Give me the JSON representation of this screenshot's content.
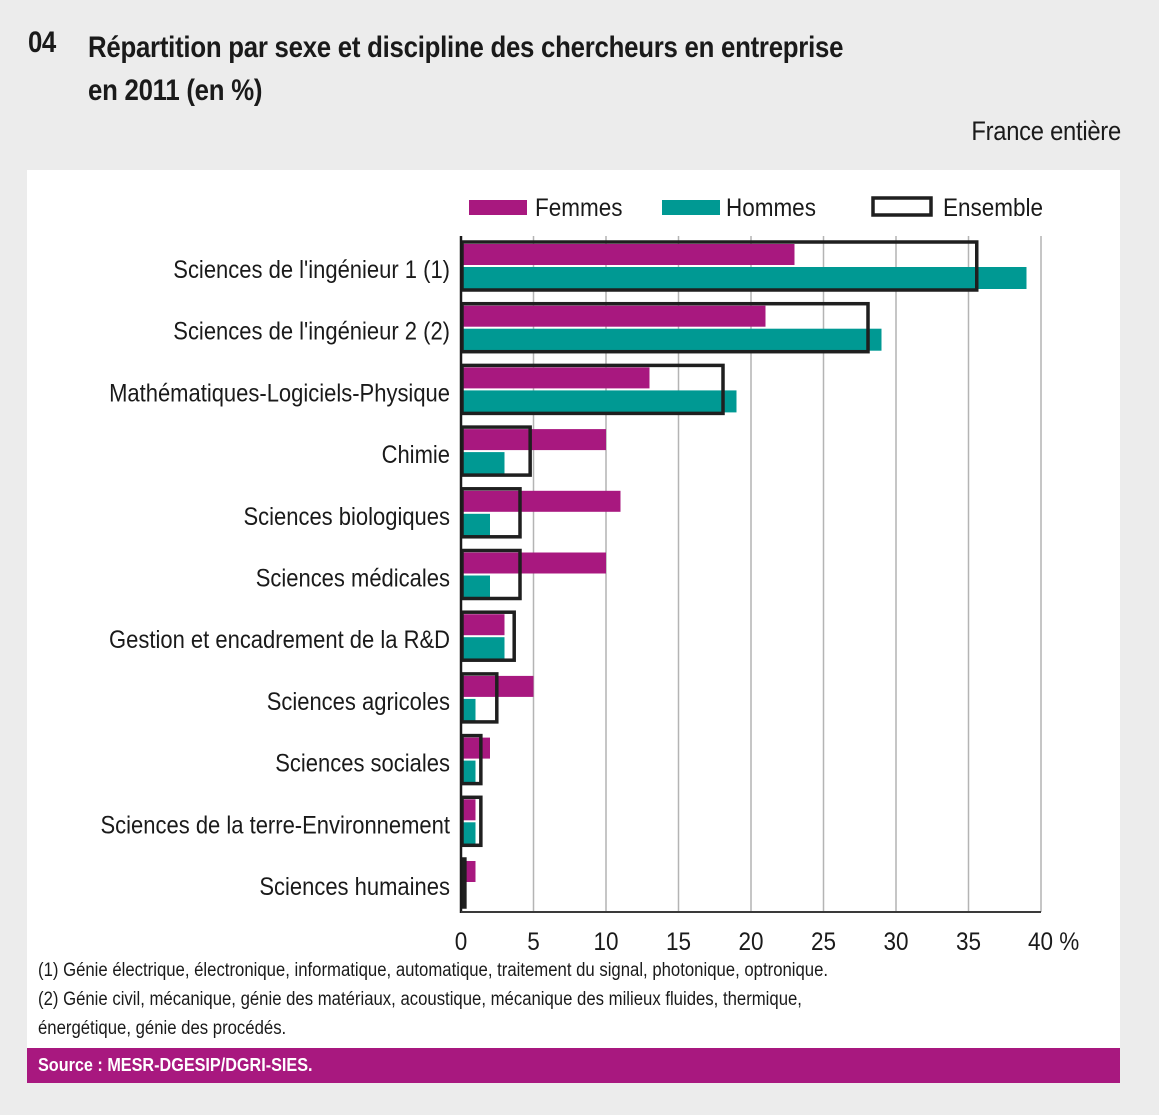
{
  "header": {
    "number": "04",
    "title_line1": "Répartition par sexe et discipline des chercheurs en entreprise",
    "title_line2": "en 2011 (en %)",
    "scope": "France entière"
  },
  "colors": {
    "femmes": "#a8187f",
    "hommes": "#009993",
    "ensemble_outline": "#1f1f1f",
    "background": "#ececec",
    "panel": "#ffffff",
    "gridline": "#b4b4b4",
    "source_band": "#a8187f"
  },
  "chart_data": {
    "type": "bar",
    "orientation": "horizontal",
    "title": "Répartition par sexe et discipline des chercheurs en entreprise en 2011 (en %)",
    "xlabel": "%",
    "ylabel": "",
    "xlim": [
      0,
      40
    ],
    "x_ticks": [
      0,
      5,
      10,
      15,
      20,
      25,
      30,
      35,
      40
    ],
    "x_tick_labels": [
      "0",
      "5",
      "10",
      "15",
      "20",
      "25",
      "30",
      "35",
      "40 %"
    ],
    "grid": "vertical",
    "legend_position": "top",
    "categories": [
      "Sciences de l'ingénieur 1 (1)",
      "Sciences de l'ingénieur 2 (2)",
      "Mathématiques-Logiciels-Physique",
      "Chimie",
      "Sciences biologiques",
      "Sciences médicales",
      "Gestion et encadrement de la R&D",
      "Sciences agricoles",
      "Sciences sociales",
      "Sciences de la terre-Environnement",
      "Sciences humaines"
    ],
    "series": [
      {
        "name": "Femmes",
        "style": "filled",
        "values": [
          23,
          21,
          13,
          10,
          11,
          10,
          3,
          5,
          2,
          1,
          1
        ]
      },
      {
        "name": "Hommes",
        "style": "filled",
        "values": [
          39,
          29,
          19,
          3,
          2,
          2,
          3,
          1,
          1,
          1,
          0
        ]
      },
      {
        "name": "Ensemble",
        "style": "outline",
        "values": [
          35.5,
          28,
          18,
          4.7,
          4,
          4,
          3.6,
          2.4,
          1.3,
          1.3,
          0.2
        ]
      }
    ]
  },
  "legend": [
    {
      "label": "Femmes",
      "style": "filled"
    },
    {
      "label": "Hommes",
      "style": "filled"
    },
    {
      "label": "Ensemble",
      "style": "outline"
    }
  ],
  "notes": [
    "(1) Génie électrique, électronique, informatique, automatique, traitement du signal, photonique, optronique.",
    "(2) Génie civil, mécanique, génie des matériaux, acoustique, mécanique des milieux fluides, thermique,",
    " énergétique, génie des procédés."
  ],
  "source": "Source : MESR-DGESIP/DGRI-SIES."
}
